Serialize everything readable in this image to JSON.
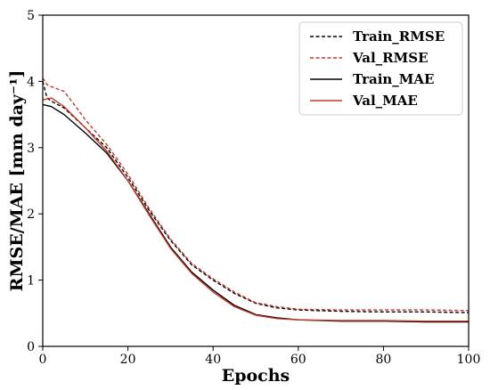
{
  "chart_data": {
    "type": "line",
    "title": "",
    "xlabel": "Epochs",
    "ylabel": "RMSE/MAE [mm day⁻¹]",
    "xlim": [
      0,
      100
    ],
    "ylim": [
      0,
      5
    ],
    "x_ticks": [
      "0",
      "20",
      "40",
      "60",
      "80",
      "100"
    ],
    "y_ticks": [
      "0",
      "1",
      "2",
      "3",
      "4",
      "5"
    ],
    "legend_position": "top-right",
    "grid": false,
    "series": [
      {
        "name": "Train_RMSE",
        "color": "#000000",
        "style": "dashed",
        "points": [
          [
            0,
            4.0
          ],
          [
            1,
            3.75
          ],
          [
            2,
            3.7
          ],
          [
            5,
            3.6
          ],
          [
            10,
            3.3
          ],
          [
            15,
            3.0
          ],
          [
            20,
            2.55
          ],
          [
            25,
            2.05
          ],
          [
            30,
            1.6
          ],
          [
            35,
            1.23
          ],
          [
            40,
            1.0
          ],
          [
            45,
            0.8
          ],
          [
            50,
            0.65
          ],
          [
            55,
            0.58
          ],
          [
            60,
            0.55
          ],
          [
            70,
            0.53
          ],
          [
            80,
            0.52
          ],
          [
            90,
            0.52
          ],
          [
            100,
            0.51
          ]
        ]
      },
      {
        "name": "Val_RMSE",
        "color": "#c0392b",
        "style": "dashed",
        "points": [
          [
            0,
            4.05
          ],
          [
            1,
            3.95
          ],
          [
            2,
            3.92
          ],
          [
            5,
            3.85
          ],
          [
            8,
            3.6
          ],
          [
            10,
            3.42
          ],
          [
            15,
            3.05
          ],
          [
            20,
            2.6
          ],
          [
            25,
            2.08
          ],
          [
            30,
            1.62
          ],
          [
            35,
            1.25
          ],
          [
            40,
            1.02
          ],
          [
            45,
            0.82
          ],
          [
            50,
            0.66
          ],
          [
            55,
            0.6
          ],
          [
            60,
            0.56
          ],
          [
            70,
            0.55
          ],
          [
            80,
            0.55
          ],
          [
            90,
            0.55
          ],
          [
            100,
            0.54
          ]
        ]
      },
      {
        "name": "Train_MAE",
        "color": "#000000",
        "style": "solid",
        "points": [
          [
            0,
            3.65
          ],
          [
            2,
            3.62
          ],
          [
            5,
            3.5
          ],
          [
            10,
            3.22
          ],
          [
            15,
            2.92
          ],
          [
            20,
            2.5
          ],
          [
            25,
            2.0
          ],
          [
            30,
            1.5
          ],
          [
            35,
            1.12
          ],
          [
            40,
            0.85
          ],
          [
            45,
            0.62
          ],
          [
            50,
            0.48
          ],
          [
            55,
            0.43
          ],
          [
            60,
            0.4
          ],
          [
            70,
            0.38
          ],
          [
            80,
            0.38
          ],
          [
            90,
            0.37
          ],
          [
            100,
            0.37
          ]
        ]
      },
      {
        "name": "Val_MAE",
        "color": "#c0392b",
        "style": "solid",
        "points": [
          [
            0,
            3.72
          ],
          [
            2,
            3.75
          ],
          [
            5,
            3.62
          ],
          [
            10,
            3.3
          ],
          [
            15,
            2.95
          ],
          [
            20,
            2.5
          ],
          [
            25,
            1.98
          ],
          [
            30,
            1.48
          ],
          [
            35,
            1.1
          ],
          [
            40,
            0.82
          ],
          [
            45,
            0.6
          ],
          [
            50,
            0.47
          ],
          [
            55,
            0.42
          ],
          [
            60,
            0.4
          ],
          [
            70,
            0.39
          ],
          [
            80,
            0.39
          ],
          [
            90,
            0.38
          ],
          [
            100,
            0.38
          ]
        ]
      }
    ]
  }
}
